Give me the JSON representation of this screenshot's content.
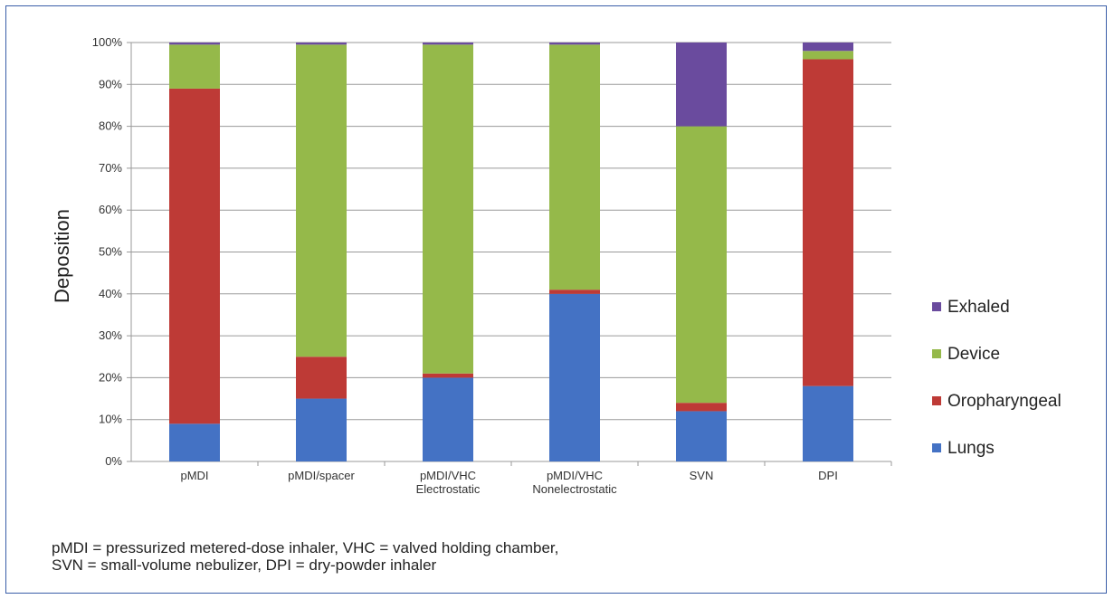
{
  "chart_data": {
    "type": "bar",
    "stacked": true,
    "ylabel": "Deposition",
    "xlabel": "",
    "ylim": [
      0,
      100
    ],
    "yticks": [
      "0%",
      "10%",
      "20%",
      "30%",
      "40%",
      "50%",
      "60%",
      "70%",
      "80%",
      "90%",
      "100%"
    ],
    "grid": true,
    "legend_position": "right",
    "categories": [
      [
        "pMDI"
      ],
      [
        "pMDI/spacer"
      ],
      [
        "pMDI/VHC",
        "Electrostatic"
      ],
      [
        "pMDI/VHC",
        "Nonelectrostatic"
      ],
      [
        "SVN"
      ],
      [
        "DPI"
      ]
    ],
    "series": [
      {
        "name": "Lungs",
        "color": "#4472c4",
        "values": [
          9,
          15,
          20,
          40,
          12,
          18
        ]
      },
      {
        "name": "Oropharyngeal",
        "color": "#be3a36",
        "values": [
          80,
          10,
          1,
          1,
          2,
          78
        ]
      },
      {
        "name": "Device",
        "color": "#95b94a",
        "values": [
          10.5,
          74.5,
          78.5,
          58.5,
          66,
          2
        ]
      },
      {
        "name": "Exhaled",
        "color": "#6a4b9e",
        "values": [
          0.5,
          0.5,
          0.5,
          0.5,
          20,
          2
        ]
      }
    ],
    "legend_order": [
      "Exhaled",
      "Device",
      "Oropharyngeal",
      "Lungs"
    ]
  },
  "footnote": {
    "line1": "pMDI = pressurized metered-dose inhaler, VHC = valved holding chamber,",
    "line2": "SVN = small-volume nebulizer, DPI = dry-powder inhaler"
  }
}
